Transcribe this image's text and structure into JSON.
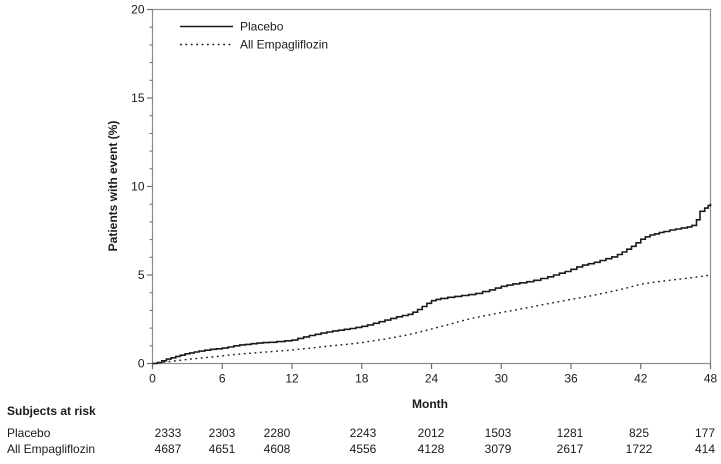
{
  "chart_data": {
    "type": "line",
    "title": "",
    "xlabel": "Month",
    "ylabel": "Patients with event (%)",
    "xlim": [
      0,
      48
    ],
    "ylim": [
      0,
      20
    ],
    "x_ticks": [
      0,
      6,
      12,
      18,
      24,
      30,
      36,
      42,
      48
    ],
    "y_ticks": [
      0,
      5,
      10,
      15,
      20
    ],
    "y_minor_step": 1,
    "grid": false,
    "legend": {
      "position": "inside-top-left"
    },
    "frame_color": "#8c8c8c",
    "tick_color": "#6e6e6e",
    "line_color": "#1a1a1a",
    "series": [
      {
        "name": "Placebo",
        "style": "solid-step",
        "points": [
          [
            0,
            0
          ],
          [
            0.4,
            0.05
          ],
          [
            0.8,
            0.15
          ],
          [
            1.2,
            0.25
          ],
          [
            1.6,
            0.32
          ],
          [
            2,
            0.4
          ],
          [
            2.4,
            0.47
          ],
          [
            2.8,
            0.55
          ],
          [
            3.2,
            0.6
          ],
          [
            3.6,
            0.65
          ],
          [
            4,
            0.7
          ],
          [
            4.5,
            0.75
          ],
          [
            5,
            0.8
          ],
          [
            5.5,
            0.83
          ],
          [
            6,
            0.87
          ],
          [
            6.5,
            0.93
          ],
          [
            7,
            1.0
          ],
          [
            7.5,
            1.05
          ],
          [
            8,
            1.08
          ],
          [
            8.5,
            1.12
          ],
          [
            9,
            1.15
          ],
          [
            9.5,
            1.18
          ],
          [
            10,
            1.2
          ],
          [
            10.7,
            1.24
          ],
          [
            11.4,
            1.28
          ],
          [
            12,
            1.32
          ],
          [
            12.5,
            1.42
          ],
          [
            13,
            1.5
          ],
          [
            13.5,
            1.58
          ],
          [
            14,
            1.65
          ],
          [
            14.5,
            1.72
          ],
          [
            15,
            1.78
          ],
          [
            15.5,
            1.84
          ],
          [
            16,
            1.88
          ],
          [
            16.5,
            1.93
          ],
          [
            17,
            1.98
          ],
          [
            17.5,
            2.04
          ],
          [
            18,
            2.1
          ],
          [
            18.5,
            2.18
          ],
          [
            19,
            2.27
          ],
          [
            19.5,
            2.36
          ],
          [
            20,
            2.45
          ],
          [
            20.5,
            2.55
          ],
          [
            21,
            2.64
          ],
          [
            21.5,
            2.71
          ],
          [
            22,
            2.78
          ],
          [
            22.4,
            2.9
          ],
          [
            22.8,
            3.05
          ],
          [
            23.2,
            3.22
          ],
          [
            23.6,
            3.4
          ],
          [
            24,
            3.55
          ],
          [
            24.4,
            3.62
          ],
          [
            24.8,
            3.68
          ],
          [
            25.4,
            3.74
          ],
          [
            26,
            3.79
          ],
          [
            26.6,
            3.84
          ],
          [
            27.2,
            3.89
          ],
          [
            27.8,
            3.96
          ],
          [
            28.4,
            4.06
          ],
          [
            29,
            4.16
          ],
          [
            29.5,
            4.26
          ],
          [
            30,
            4.36
          ],
          [
            30.5,
            4.43
          ],
          [
            31,
            4.5
          ],
          [
            31.6,
            4.56
          ],
          [
            32.2,
            4.62
          ],
          [
            32.8,
            4.7
          ],
          [
            33.4,
            4.8
          ],
          [
            34,
            4.9
          ],
          [
            34.5,
            5.0
          ],
          [
            35,
            5.1
          ],
          [
            35.5,
            5.2
          ],
          [
            36,
            5.32
          ],
          [
            36.5,
            5.46
          ],
          [
            37,
            5.56
          ],
          [
            37.5,
            5.64
          ],
          [
            38,
            5.72
          ],
          [
            38.5,
            5.82
          ],
          [
            39,
            5.92
          ],
          [
            39.5,
            6.02
          ],
          [
            40,
            6.16
          ],
          [
            40.4,
            6.3
          ],
          [
            40.8,
            6.46
          ],
          [
            41.2,
            6.62
          ],
          [
            41.6,
            6.82
          ],
          [
            42,
            7.02
          ],
          [
            42.4,
            7.16
          ],
          [
            42.8,
            7.26
          ],
          [
            43.2,
            7.32
          ],
          [
            43.6,
            7.4
          ],
          [
            44,
            7.46
          ],
          [
            44.5,
            7.54
          ],
          [
            45,
            7.6
          ],
          [
            45.5,
            7.66
          ],
          [
            46,
            7.72
          ],
          [
            46.4,
            7.8
          ],
          [
            46.8,
            8.12
          ],
          [
            47.1,
            8.6
          ],
          [
            47.5,
            8.78
          ],
          [
            47.8,
            8.92
          ],
          [
            48,
            9.02
          ]
        ]
      },
      {
        "name": "All Empagliflozin",
        "style": "dotted",
        "points": [
          [
            0,
            0
          ],
          [
            1,
            0.08
          ],
          [
            2,
            0.15
          ],
          [
            3,
            0.23
          ],
          [
            4,
            0.3
          ],
          [
            5,
            0.36
          ],
          [
            6,
            0.43
          ],
          [
            7,
            0.5
          ],
          [
            8,
            0.56
          ],
          [
            9,
            0.61
          ],
          [
            10,
            0.66
          ],
          [
            11,
            0.71
          ],
          [
            12,
            0.76
          ],
          [
            13,
            0.83
          ],
          [
            14,
            0.9
          ],
          [
            15,
            0.97
          ],
          [
            16,
            1.04
          ],
          [
            17,
            1.1
          ],
          [
            18,
            1.18
          ],
          [
            19,
            1.28
          ],
          [
            20,
            1.38
          ],
          [
            21,
            1.5
          ],
          [
            22,
            1.62
          ],
          [
            23,
            1.78
          ],
          [
            24,
            1.95
          ],
          [
            25,
            2.12
          ],
          [
            26,
            2.3
          ],
          [
            27,
            2.48
          ],
          [
            28,
            2.62
          ],
          [
            29,
            2.75
          ],
          [
            30,
            2.88
          ],
          [
            31,
            3.0
          ],
          [
            32,
            3.12
          ],
          [
            33,
            3.25
          ],
          [
            34,
            3.38
          ],
          [
            35,
            3.5
          ],
          [
            36,
            3.62
          ],
          [
            37,
            3.74
          ],
          [
            38,
            3.86
          ],
          [
            39,
            4.0
          ],
          [
            40,
            4.14
          ],
          [
            41,
            4.3
          ],
          [
            42,
            4.48
          ],
          [
            43,
            4.58
          ],
          [
            44,
            4.66
          ],
          [
            45,
            4.74
          ],
          [
            46,
            4.82
          ],
          [
            47,
            4.9
          ],
          [
            48,
            5.0
          ]
        ]
      }
    ],
    "subjects_at_risk": {
      "title": "Subjects at risk",
      "months": [
        0,
        6,
        12,
        18,
        24,
        30,
        36,
        42,
        48
      ],
      "rows": [
        {
          "label": "Placebo",
          "values": [
            "2333",
            "2303",
            "2280",
            "2243",
            "2012",
            "1503",
            "1281",
            "825",
            "177"
          ]
        },
        {
          "label": "All Empagliflozin",
          "values": [
            "4687",
            "4651",
            "4608",
            "4556",
            "4128",
            "3079",
            "2617",
            "1722",
            "414"
          ]
        }
      ]
    }
  }
}
